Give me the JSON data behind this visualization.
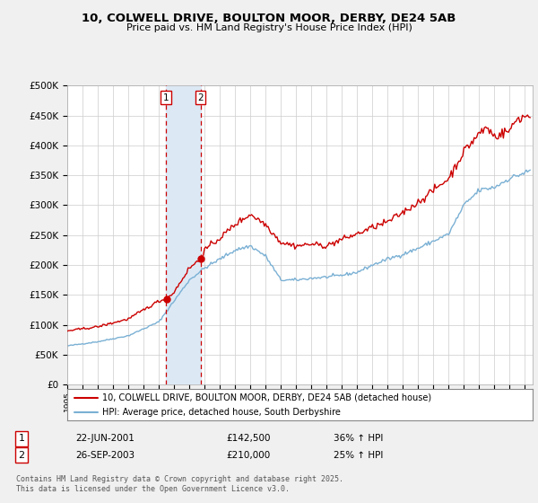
{
  "title": "10, COLWELL DRIVE, BOULTON MOOR, DERBY, DE24 5AB",
  "subtitle": "Price paid vs. HM Land Registry's House Price Index (HPI)",
  "background_color": "#f0f0f0",
  "plot_bg_color": "#ffffff",
  "red_color": "#cc0000",
  "blue_color": "#7ab0d4",
  "vline_color": "#cc0000",
  "shade_color": "#dce9f5",
  "transaction1": {
    "date_num": 2001.47,
    "price": 142500,
    "label": "1",
    "date_str": "22-JUN-2001",
    "pct": "36%"
  },
  "transaction2": {
    "date_num": 2003.73,
    "price": 210000,
    "label": "2",
    "date_str": "26-SEP-2003",
    "pct": "25%"
  },
  "footer": "Contains HM Land Registry data © Crown copyright and database right 2025.\nThis data is licensed under the Open Government Licence v3.0.",
  "legend1": "10, COLWELL DRIVE, BOULTON MOOR, DERBY, DE24 5AB (detached house)",
  "legend2": "HPI: Average price, detached house, South Derbyshire",
  "xmin": 1995.0,
  "xmax": 2025.5,
  "ymin": 0,
  "ymax": 500000
}
